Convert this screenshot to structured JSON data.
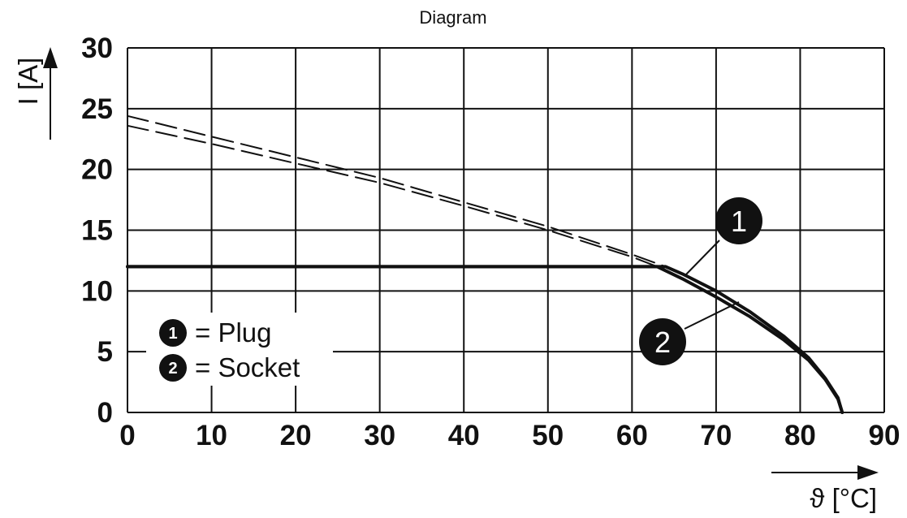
{
  "chart_data": {
    "type": "line",
    "title": "Diagram",
    "xlabel": "ϑ [°C]",
    "ylabel": "I [A]",
    "xlim": [
      0,
      90
    ],
    "ylim": [
      0,
      30
    ],
    "x_ticks": [
      "0",
      "10",
      "20",
      "30",
      "40",
      "50",
      "60",
      "70",
      "80",
      "90"
    ],
    "y_ticks": [
      "0",
      "5",
      "10",
      "15",
      "20",
      "25",
      "30"
    ],
    "grid": true,
    "legend": [
      {
        "marker": "1",
        "label": "= Plug"
      },
      {
        "marker": "2",
        "label": "= Socket"
      }
    ],
    "callouts": [
      "1",
      "2"
    ],
    "series": [
      {
        "marker": "1",
        "style": "solid",
        "x": [
          0,
          64,
          66,
          70,
          74,
          78,
          81,
          83,
          84.5,
          85
        ],
        "y": [
          12,
          12,
          11.4,
          10.0,
          8.3,
          6.3,
          4.5,
          2.8,
          1.2,
          0
        ]
      },
      {
        "marker": "2",
        "style": "solid",
        "x": [
          0,
          63,
          66,
          70,
          74,
          78,
          81,
          83,
          84.5,
          85
        ],
        "y": [
          12,
          12,
          11.0,
          9.5,
          7.9,
          6.0,
          4.3,
          2.7,
          1.1,
          0
        ]
      },
      {
        "marker": "1",
        "style": "dashed",
        "x": [
          0,
          10,
          20,
          30,
          40,
          50,
          60,
          64
        ],
        "y": [
          24.4,
          22.7,
          21.0,
          19.3,
          17.3,
          15.3,
          13.0,
          12
        ]
      },
      {
        "marker": "2",
        "style": "dashed",
        "x": [
          0,
          10,
          20,
          30,
          40,
          50,
          60,
          63
        ],
        "y": [
          23.6,
          22.1,
          20.5,
          18.9,
          17.0,
          15.0,
          12.8,
          12
        ]
      }
    ],
    "colors": {
      "line": "#111111",
      "grid": "#111111",
      "badge": "#111111"
    }
  }
}
